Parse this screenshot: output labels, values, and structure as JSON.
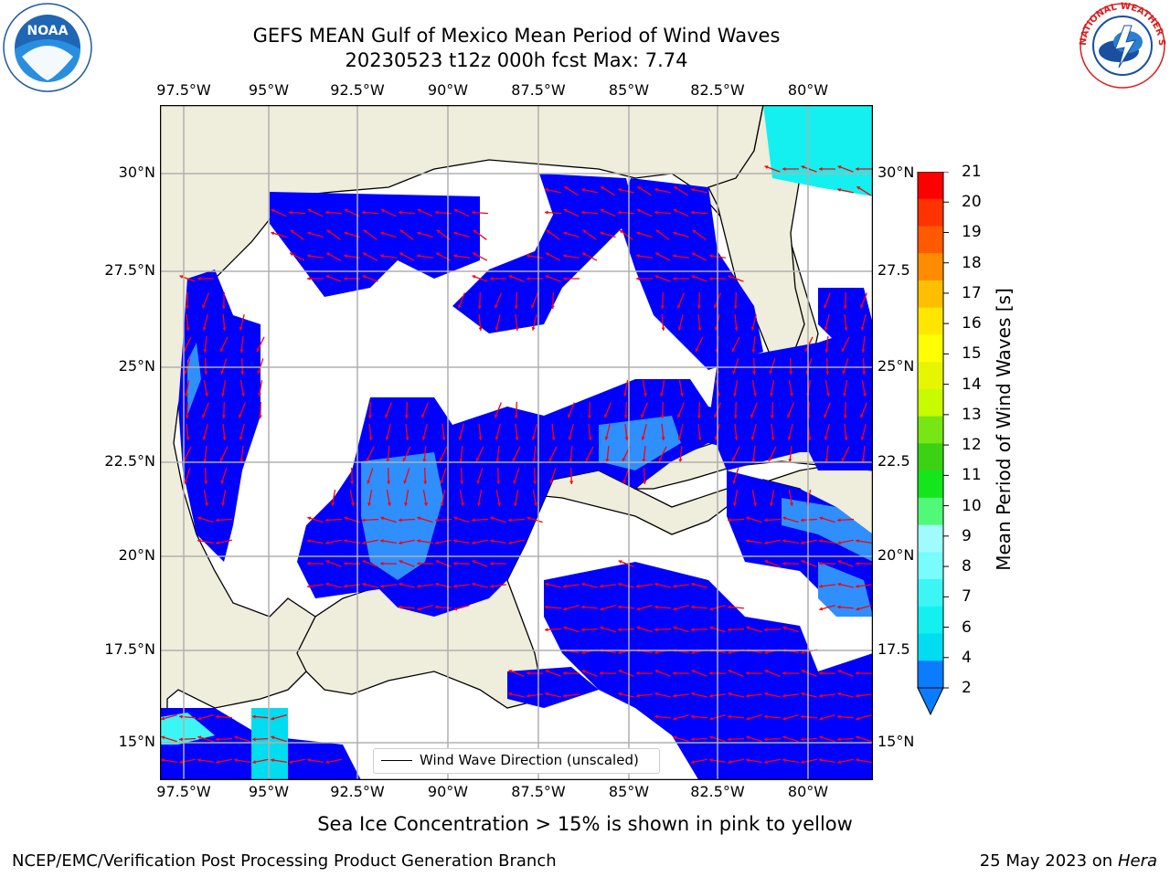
{
  "title": {
    "line1": "GEFS MEAN Gulf of Mexico Mean Period of Wind Waves",
    "line2": "20230523 t12z 000h fcst   Max: 7.74"
  },
  "axes": {
    "lon_labels": [
      "97.5°W",
      "95°W",
      "92.5°W",
      "90°W",
      "87.5°W",
      "85°W",
      "82.5°W",
      "80°W"
    ],
    "lat_labels_left": [
      "30°N",
      "27.5°N",
      "25°N",
      "22.5°N",
      "20°N",
      "17.5°N",
      "15°N"
    ],
    "lat_labels_right": [
      "30°N",
      "27.5",
      "25°N",
      "22.5",
      "20°N",
      "17.5",
      "15°N"
    ]
  },
  "legend": {
    "label": "Wind Wave Direction (unscaled)"
  },
  "colorbar": {
    "title": "Mean Period of Wind Waves [s]",
    "ticks": [
      "2",
      "4",
      "6",
      "7",
      "8",
      "9",
      "10",
      "11",
      "12",
      "13",
      "14",
      "15",
      "16",
      "17",
      "18",
      "19",
      "20",
      "21"
    ],
    "colors": [
      "#0a7cff",
      "#00dcf0",
      "#14f0f0",
      "#3cf5f5",
      "#78fcfc",
      "#a0fcfc",
      "#50fa78",
      "#14e61e",
      "#3cd214",
      "#78e614",
      "#c8fa00",
      "#e6f500",
      "#ffff00",
      "#ffe600",
      "#ffbe00",
      "#ff8c00",
      "#ff5a00",
      "#ff3200",
      "#ff0000"
    ]
  },
  "note": "Sea Ice Concentration > 15% is shown in pink to yellow",
  "footer": {
    "left": "NCEP/EMC/Verification Post Processing Product Generation Branch",
    "date": "25 May 2023",
    "on": "on",
    "host": "Hera"
  },
  "logos": {
    "noaa": {
      "text": "NOAA",
      "ring": "NATIONAL OCEANIC AND ATMOSPHERIC ADMINISTRATION · U.S. DEPARTMENT OF COMMERCE"
    },
    "nws": {
      "ring": "NATIONAL WEATHER SERVICE"
    }
  },
  "colors": {
    "land": "#efeddb",
    "water": "#ffffff",
    "wave_low": "#0000ff",
    "wave_mid": "#2f8fff",
    "arrow": "#ff0000"
  }
}
